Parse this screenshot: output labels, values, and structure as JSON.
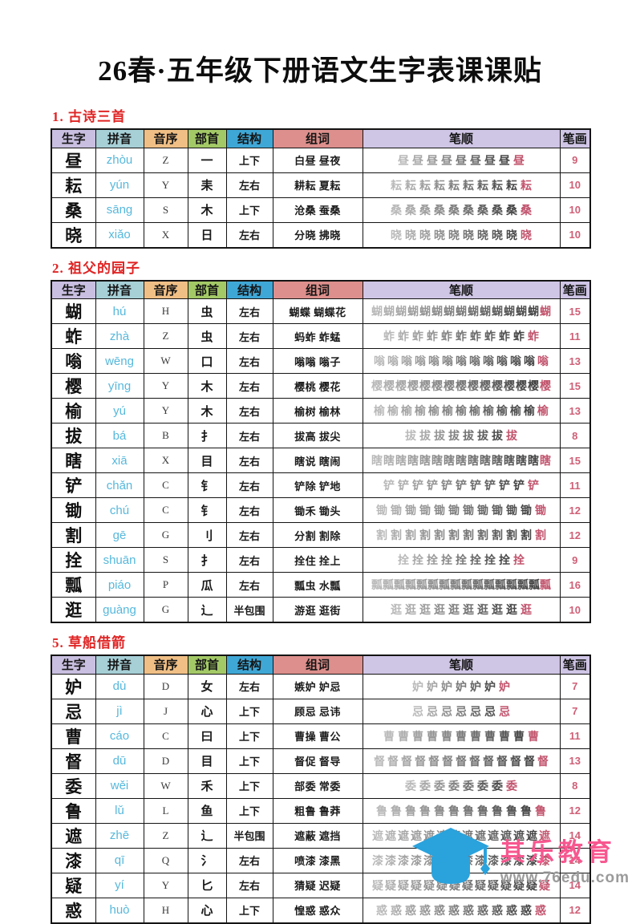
{
  "page": {
    "title": "26春·五年级下册语文生字表课课贴"
  },
  "theme": {
    "section_title_color": "#e02424",
    "pinyin_color": "#56b8dc",
    "stroke_count_color": "#cf5f76",
    "stroke_base_color": "#3a3a3a",
    "stroke_highlight_color": "#c2556e"
  },
  "columns": [
    {
      "label": "生字",
      "bg": "#c9bfe0"
    },
    {
      "label": "拼音",
      "bg": "#a6cfd6"
    },
    {
      "label": "音序",
      "bg": "#f0bf85"
    },
    {
      "label": "部首",
      "bg": "#a3c966"
    },
    {
      "label": "结构",
      "bg": "#3fa7d6"
    },
    {
      "label": "组词",
      "bg": "#dc8f8c"
    },
    {
      "label": "笔顺",
      "bg": "#cfc5e5"
    },
    {
      "label": "笔画",
      "bg": "#cfc5e5"
    }
  ],
  "sections": [
    {
      "label": "1. 古诗三首",
      "rows": [
        {
          "char": "昼",
          "pinyin": "zhòu",
          "initial": "Z",
          "radical": "一",
          "structure": "上下",
          "words": "白昼 昼夜",
          "strokes": 9
        },
        {
          "char": "耘",
          "pinyin": "yún",
          "initial": "Y",
          "radical": "耒",
          "structure": "左右",
          "words": "耕耘 夏耘",
          "strokes": 10
        },
        {
          "char": "桑",
          "pinyin": "sāng",
          "initial": "S",
          "radical": "木",
          "structure": "上下",
          "words": "沧桑 蚕桑",
          "strokes": 10
        },
        {
          "char": "晓",
          "pinyin": "xiǎo",
          "initial": "X",
          "radical": "日",
          "structure": "左右",
          "words": "分晓 拂晓",
          "strokes": 10
        }
      ]
    },
    {
      "label": "2. 祖父的园子",
      "rows": [
        {
          "char": "蝴",
          "pinyin": "hú",
          "initial": "H",
          "radical": "虫",
          "structure": "左右",
          "words": "蝴蝶 蝴蝶花",
          "strokes": 15
        },
        {
          "char": "蚱",
          "pinyin": "zhà",
          "initial": "Z",
          "radical": "虫",
          "structure": "左右",
          "words": "蚂蚱 蚱蜢",
          "strokes": 11
        },
        {
          "char": "嗡",
          "pinyin": "wēng",
          "initial": "W",
          "radical": "口",
          "structure": "左右",
          "words": "嗡嗡 嗡子",
          "strokes": 13
        },
        {
          "char": "樱",
          "pinyin": "yīng",
          "initial": "Y",
          "radical": "木",
          "structure": "左右",
          "words": "樱桃 樱花",
          "strokes": 15
        },
        {
          "char": "榆",
          "pinyin": "yú",
          "initial": "Y",
          "radical": "木",
          "structure": "左右",
          "words": "榆树 榆林",
          "strokes": 13
        },
        {
          "char": "拔",
          "pinyin": "bá",
          "initial": "B",
          "radical": "扌",
          "structure": "左右",
          "words": "拔高 拔尖",
          "strokes": 8
        },
        {
          "char": "瞎",
          "pinyin": "xiā",
          "initial": "X",
          "radical": "目",
          "structure": "左右",
          "words": "瞎说 瞎闹",
          "strokes": 15
        },
        {
          "char": "铲",
          "pinyin": "chǎn",
          "initial": "C",
          "radical": "钅",
          "structure": "左右",
          "words": "铲除 铲地",
          "strokes": 11
        },
        {
          "char": "锄",
          "pinyin": "chú",
          "initial": "C",
          "radical": "钅",
          "structure": "左右",
          "words": "锄禾 锄头",
          "strokes": 12
        },
        {
          "char": "割",
          "pinyin": "gē",
          "initial": "G",
          "radical": "刂",
          "structure": "左右",
          "words": "分割 割除",
          "strokes": 12
        },
        {
          "char": "拴",
          "pinyin": "shuān",
          "initial": "S",
          "radical": "扌",
          "structure": "左右",
          "words": "拴住 拴上",
          "strokes": 9
        },
        {
          "char": "瓢",
          "pinyin": "piáo",
          "initial": "P",
          "radical": "瓜",
          "structure": "左右",
          "words": "瓢虫 水瓢",
          "strokes": 16
        },
        {
          "char": "逛",
          "pinyin": "guàng",
          "initial": "G",
          "radical": "辶",
          "structure": "半包围",
          "words": "游逛 逛街",
          "strokes": 10
        }
      ]
    },
    {
      "label": "5. 草船借箭",
      "rows": [
        {
          "char": "妒",
          "pinyin": "dù",
          "initial": "D",
          "radical": "女",
          "structure": "左右",
          "words": "嫉妒 妒忌",
          "strokes": 7
        },
        {
          "char": "忌",
          "pinyin": "jì",
          "initial": "J",
          "radical": "心",
          "structure": "上下",
          "words": "顾忌 忌讳",
          "strokes": 7
        },
        {
          "char": "曹",
          "pinyin": "cáo",
          "initial": "C",
          "radical": "曰",
          "structure": "上下",
          "words": "曹操 曹公",
          "strokes": 11
        },
        {
          "char": "督",
          "pinyin": "dū",
          "initial": "D",
          "radical": "目",
          "structure": "上下",
          "words": "督促 督导",
          "strokes": 13
        },
        {
          "char": "委",
          "pinyin": "wěi",
          "initial": "W",
          "radical": "禾",
          "structure": "上下",
          "words": "部委 常委",
          "strokes": 8
        },
        {
          "char": "鲁",
          "pinyin": "lǔ",
          "initial": "L",
          "radical": "鱼",
          "structure": "上下",
          "words": "粗鲁 鲁莽",
          "strokes": 12
        },
        {
          "char": "遮",
          "pinyin": "zhē",
          "initial": "Z",
          "radical": "辶",
          "structure": "半包围",
          "words": "遮蔽 遮挡",
          "strokes": 14
        },
        {
          "char": "漆",
          "pinyin": "qī",
          "initial": "Q",
          "radical": "氵",
          "structure": "左右",
          "words": "喷漆 漆黑",
          "strokes": 14
        },
        {
          "char": "疑",
          "pinyin": "yí",
          "initial": "Y",
          "radical": "匕",
          "structure": "左右",
          "words": "猜疑 迟疑",
          "strokes": 14
        },
        {
          "char": "惑",
          "pinyin": "huò",
          "initial": "H",
          "radical": "心",
          "structure": "上下",
          "words": "惶惑 惑众",
          "strokes": 12
        }
      ]
    }
  ],
  "footer": {
    "brand": "其乐教育",
    "url": "www.76edu.com",
    "brand_color": "#f7578f",
    "url_color": "#9b9b9b",
    "cap_color": "#2aa2dc"
  }
}
